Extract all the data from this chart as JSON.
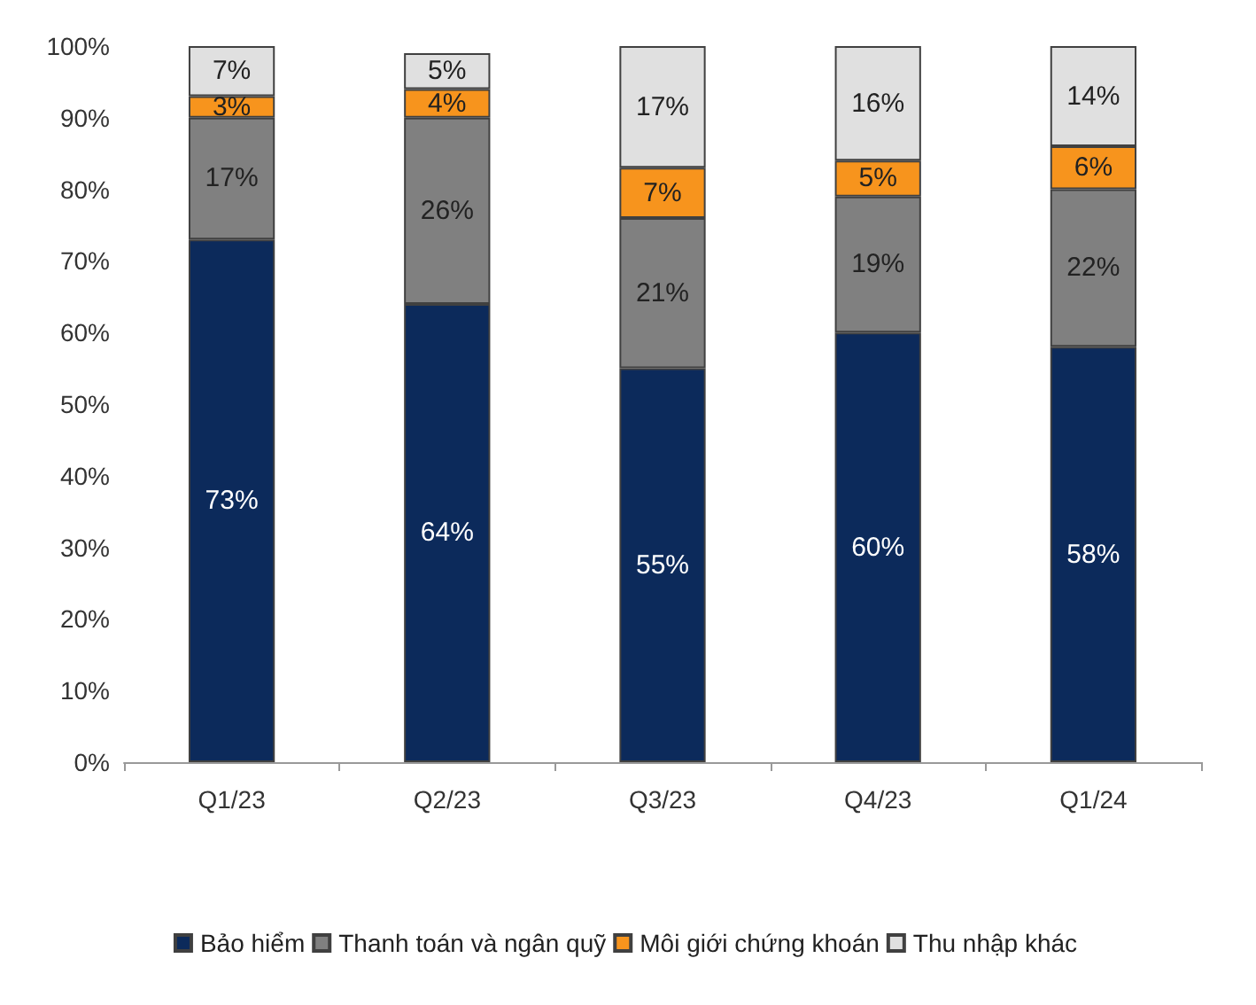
{
  "chart_data": {
    "type": "bar",
    "stacked": true,
    "categories": [
      "Q1/23",
      "Q2/23",
      "Q3/23",
      "Q4/23",
      "Q1/24"
    ],
    "series": [
      {
        "name": "Bảo hiểm",
        "color": "#0c2a5b",
        "values": [
          73,
          64,
          55,
          60,
          58
        ],
        "value_labels": [
          "73%",
          "64%",
          "55%",
          "60%",
          "58%"
        ]
      },
      {
        "name": "Thanh toán và ngân quỹ",
        "color": "#808080",
        "values": [
          17,
          26,
          21,
          19,
          22
        ],
        "value_labels": [
          "17%",
          "26%",
          "21%",
          "19%",
          "22%"
        ]
      },
      {
        "name": "Môi giới chứng khoán",
        "color": "#f7941d",
        "values": [
          3,
          4,
          7,
          5,
          6
        ],
        "value_labels": [
          "3%",
          "4%",
          "7%",
          "5%",
          "6%"
        ]
      },
      {
        "name": "Thu nhập khác",
        "color": "#e0e0e0",
        "values": [
          7,
          5,
          17,
          16,
          14
        ],
        "value_labels": [
          "7%",
          "5%",
          "17%",
          "16%",
          "14%"
        ]
      }
    ],
    "ylim": [
      0,
      100
    ],
    "yticks": [
      {
        "value": 0,
        "label": "0%"
      },
      {
        "value": 10,
        "label": "10%"
      },
      {
        "value": 20,
        "label": "20%"
      },
      {
        "value": 30,
        "label": "30%"
      },
      {
        "value": 40,
        "label": "40%"
      },
      {
        "value": 50,
        "label": "50%"
      },
      {
        "value": 60,
        "label": "60%"
      },
      {
        "value": 70,
        "label": "70%"
      },
      {
        "value": 80,
        "label": "80%"
      },
      {
        "value": 90,
        "label": "90%"
      },
      {
        "value": 100,
        "label": "100%"
      }
    ],
    "grid": false,
    "legend": "bottom"
  }
}
